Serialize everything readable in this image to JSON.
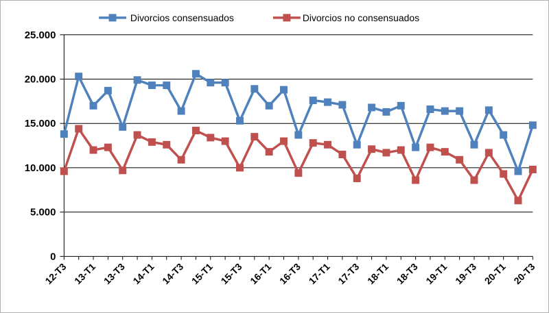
{
  "chart_data": {
    "type": "line",
    "title": "",
    "xlabel": "",
    "ylabel": "",
    "ylim": [
      0,
      25000
    ],
    "yticks": [
      0,
      5000,
      10000,
      15000,
      20000,
      25000
    ],
    "ytick_labels": [
      "0",
      "5.000",
      "10.000",
      "15.000",
      "20.000",
      "25.000"
    ],
    "grid": true,
    "legend_position": "top",
    "x": [
      "12-T3",
      "12-T4",
      "13-T1",
      "13-T2",
      "13-T3",
      "13-T4",
      "14-T1",
      "14-T2",
      "14-T3",
      "14-T4",
      "15-T1",
      "15-T2",
      "15-T3",
      "15-T4",
      "16-T1",
      "16-T2",
      "16-T3",
      "16-T4",
      "17-T1",
      "17-T2",
      "17-T3",
      "17-T4",
      "18-T1",
      "18-T2",
      "18-T3",
      "18-T4",
      "19-T1",
      "19-T2",
      "19-T3",
      "19-T4",
      "20-T1",
      "20-T2",
      "20-T3"
    ],
    "x_tick_labels": [
      "12-T3",
      "13-T1",
      "13-T3",
      "14-T1",
      "14-T3",
      "15-T1",
      "15-T3",
      "16-T1",
      "16-T3",
      "17-T1",
      "17-T3",
      "18-T1",
      "18-T3",
      "19-T1",
      "19-T3",
      "20-T1",
      "20-T3"
    ],
    "series": [
      {
        "name": "Divorcios consensuados",
        "color": "#4F81BD",
        "values": [
          13800,
          20300,
          17000,
          18700,
          14600,
          19900,
          19300,
          19300,
          16400,
          20600,
          19600,
          19600,
          15300,
          18900,
          17000,
          18800,
          13700,
          17600,
          17400,
          17100,
          12600,
          16800,
          16300,
          17000,
          12300,
          16600,
          16400,
          16400,
          12600,
          16500,
          13700,
          9600,
          14800
        ]
      },
      {
        "name": "Divorcios no consensuados",
        "color": "#C0504D",
        "values": [
          9600,
          14400,
          12000,
          12300,
          9700,
          13700,
          12900,
          12600,
          10900,
          14200,
          13400,
          13000,
          10000,
          13500,
          11800,
          13000,
          9400,
          12800,
          12600,
          11500,
          8800,
          12100,
          11700,
          12000,
          8600,
          12300,
          11800,
          10900,
          8600,
          11700,
          9300,
          6300,
          9800
        ]
      }
    ]
  }
}
